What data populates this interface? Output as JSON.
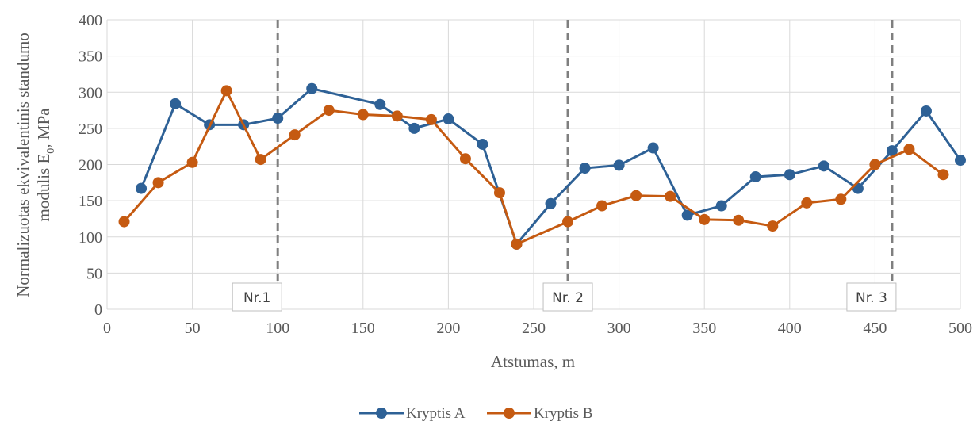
{
  "chart_data": {
    "type": "line",
    "xlabel": "Atstumas, m",
    "ylabel_line1": "Normalizuotas ekvivalentinis standumo",
    "ylabel_line2": "modulis E",
    "ylabel_sub": "0",
    "ylabel_suffix": ", MPa",
    "xlim": [
      0,
      500
    ],
    "ylim": [
      0,
      400
    ],
    "x_ticks": [
      "0",
      "50",
      "100",
      "150",
      "200",
      "250",
      "300",
      "350",
      "400",
      "450",
      "500"
    ],
    "y_ticks": [
      "0",
      "50",
      "100",
      "150",
      "200",
      "250",
      "300",
      "350",
      "400"
    ],
    "grid": true,
    "legend_position": "bottom",
    "series": [
      {
        "name": "Kryptis A",
        "color": "#2E6196",
        "points": [
          [
            20,
            167
          ],
          [
            40,
            284
          ],
          [
            60,
            255
          ],
          [
            80,
            255
          ],
          [
            100,
            264
          ],
          [
            120,
            305
          ],
          [
            160,
            283
          ],
          [
            180,
            250
          ],
          [
            200,
            263
          ],
          [
            220,
            228
          ],
          [
            240,
            90
          ],
          [
            260,
            146
          ],
          [
            280,
            195
          ],
          [
            300,
            199
          ],
          [
            320,
            223
          ],
          [
            340,
            130
          ],
          [
            360,
            143
          ],
          [
            380,
            183
          ],
          [
            400,
            186
          ],
          [
            420,
            198
          ],
          [
            440,
            167
          ],
          [
            460,
            219
          ],
          [
            480,
            274
          ],
          [
            500,
            206
          ]
        ]
      },
      {
        "name": "Kryptis B",
        "color": "#C55A11",
        "points": [
          [
            10,
            121
          ],
          [
            30,
            175
          ],
          [
            50,
            203
          ],
          [
            70,
            302
          ],
          [
            90,
            207
          ],
          [
            110,
            241
          ],
          [
            130,
            275
          ],
          [
            150,
            269
          ],
          [
            170,
            267
          ],
          [
            190,
            262
          ],
          [
            210,
            208
          ],
          [
            230,
            161
          ],
          [
            240,
            90
          ],
          [
            270,
            121
          ],
          [
            290,
            143
          ],
          [
            310,
            157
          ],
          [
            330,
            156
          ],
          [
            350,
            124
          ],
          [
            370,
            123
          ],
          [
            390,
            115
          ],
          [
            410,
            147
          ],
          [
            430,
            152
          ],
          [
            450,
            200
          ],
          [
            470,
            221
          ],
          [
            490,
            186
          ]
        ]
      }
    ],
    "reference_lines": [
      {
        "x": 100,
        "label": "Nr.1",
        "label_side": "left"
      },
      {
        "x": 270,
        "label": "Nr. 2",
        "label_side": "center"
      },
      {
        "x": 460,
        "label": "Nr. 3",
        "label_side": "left"
      }
    ]
  }
}
